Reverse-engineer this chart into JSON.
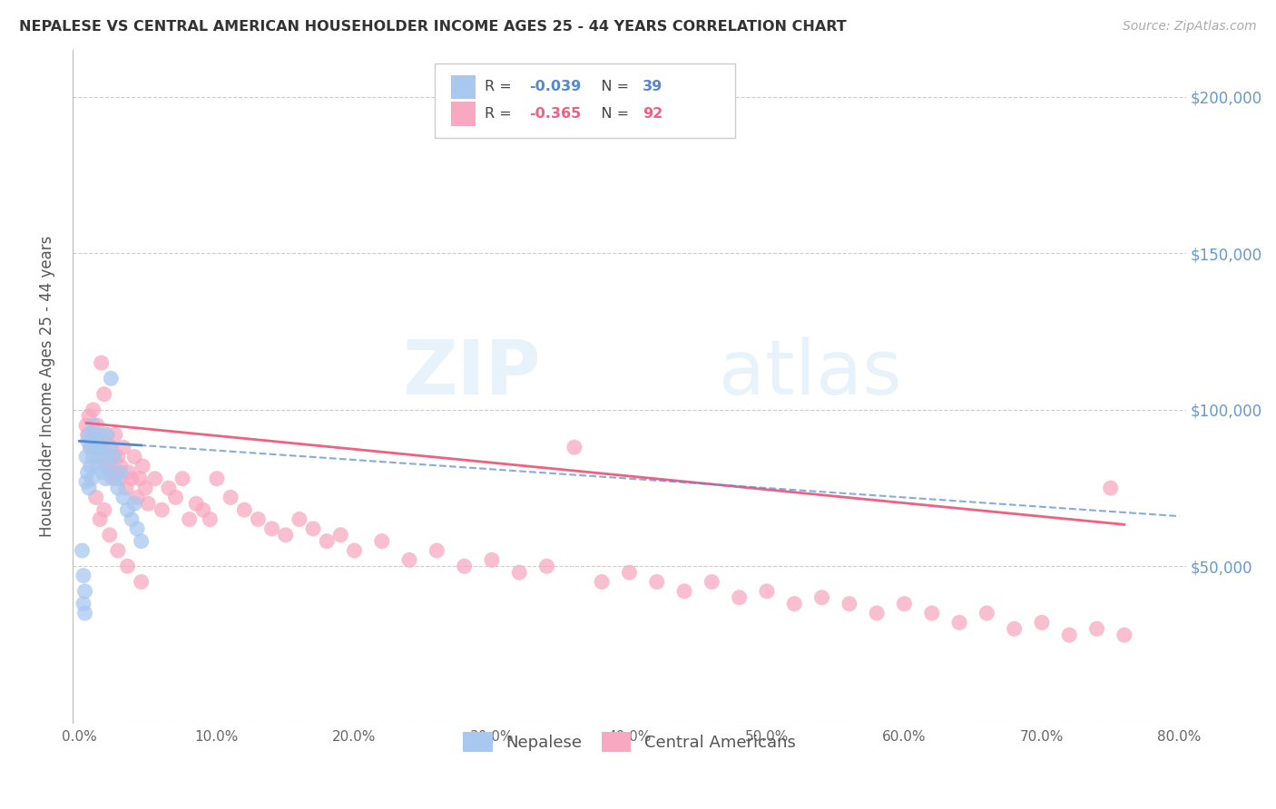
{
  "title": "NEPALESE VS CENTRAL AMERICAN HOUSEHOLDER INCOME AGES 25 - 44 YEARS CORRELATION CHART",
  "source": "Source: ZipAtlas.com",
  "ylabel": "Householder Income Ages 25 - 44 years",
  "xlabel_ticks": [
    "0.0%",
    "10.0%",
    "20.0%",
    "30.0%",
    "40.0%",
    "50.0%",
    "60.0%",
    "70.0%",
    "80.0%"
  ],
  "xlabel_vals": [
    0.0,
    0.1,
    0.2,
    0.3,
    0.4,
    0.5,
    0.6,
    0.7,
    0.8
  ],
  "ytick_vals": [
    0,
    50000,
    100000,
    150000,
    200000
  ],
  "right_ytick_labels": [
    "$50,000",
    "$100,000",
    "$150,000",
    "$200,000"
  ],
  "right_ytick_vals": [
    50000,
    100000,
    150000,
    200000
  ],
  "xlim": [
    -0.005,
    0.805
  ],
  "ylim": [
    0,
    215000
  ],
  "nepalese_R": -0.039,
  "nepalese_N": 39,
  "central_R": -0.365,
  "central_N": 92,
  "nepalese_color": "#a8c8f0",
  "central_color": "#f8a8c0",
  "nepalese_line_color": "#5588cc",
  "central_line_color": "#f06080",
  "background_color": "#ffffff",
  "nepalese_x": [
    0.002,
    0.003,
    0.003,
    0.004,
    0.004,
    0.005,
    0.005,
    0.006,
    0.006,
    0.007,
    0.007,
    0.008,
    0.008,
    0.009,
    0.01,
    0.01,
    0.011,
    0.012,
    0.013,
    0.014,
    0.015,
    0.016,
    0.017,
    0.018,
    0.019,
    0.02,
    0.021,
    0.022,
    0.023,
    0.025,
    0.026,
    0.028,
    0.03,
    0.032,
    0.035,
    0.038,
    0.04,
    0.042,
    0.045
  ],
  "nepalese_y": [
    55000,
    47000,
    38000,
    42000,
    35000,
    85000,
    77000,
    90000,
    80000,
    92000,
    75000,
    88000,
    82000,
    78000,
    95000,
    85000,
    90000,
    88000,
    82000,
    86000,
    92000,
    88000,
    80000,
    85000,
    78000,
    92000,
    82000,
    88000,
    110000,
    85000,
    78000,
    75000,
    80000,
    72000,
    68000,
    65000,
    70000,
    62000,
    58000
  ],
  "central_x": [
    0.005,
    0.006,
    0.007,
    0.008,
    0.009,
    0.01,
    0.011,
    0.012,
    0.013,
    0.014,
    0.015,
    0.016,
    0.017,
    0.018,
    0.019,
    0.02,
    0.021,
    0.022,
    0.023,
    0.024,
    0.025,
    0.026,
    0.027,
    0.028,
    0.029,
    0.03,
    0.032,
    0.034,
    0.036,
    0.038,
    0.04,
    0.042,
    0.044,
    0.046,
    0.048,
    0.05,
    0.055,
    0.06,
    0.065,
    0.07,
    0.075,
    0.08,
    0.085,
    0.09,
    0.095,
    0.1,
    0.11,
    0.12,
    0.13,
    0.14,
    0.15,
    0.16,
    0.17,
    0.18,
    0.19,
    0.2,
    0.22,
    0.24,
    0.26,
    0.28,
    0.3,
    0.32,
    0.34,
    0.36,
    0.38,
    0.4,
    0.42,
    0.44,
    0.46,
    0.48,
    0.5,
    0.52,
    0.54,
    0.56,
    0.58,
    0.6,
    0.62,
    0.64,
    0.66,
    0.68,
    0.7,
    0.72,
    0.74,
    0.76,
    0.012,
    0.015,
    0.018,
    0.022,
    0.028,
    0.035,
    0.045,
    0.75
  ],
  "central_y": [
    95000,
    92000,
    98000,
    88000,
    90000,
    100000,
    92000,
    88000,
    95000,
    85000,
    90000,
    115000,
    88000,
    105000,
    82000,
    92000,
    85000,
    80000,
    88000,
    78000,
    85000,
    92000,
    80000,
    85000,
    78000,
    82000,
    88000,
    75000,
    80000,
    78000,
    85000,
    72000,
    78000,
    82000,
    75000,
    70000,
    78000,
    68000,
    75000,
    72000,
    78000,
    65000,
    70000,
    68000,
    65000,
    78000,
    72000,
    68000,
    65000,
    62000,
    60000,
    65000,
    62000,
    58000,
    60000,
    55000,
    58000,
    52000,
    55000,
    50000,
    52000,
    48000,
    50000,
    88000,
    45000,
    48000,
    45000,
    42000,
    45000,
    40000,
    42000,
    38000,
    40000,
    38000,
    35000,
    38000,
    35000,
    32000,
    35000,
    30000,
    32000,
    28000,
    30000,
    28000,
    72000,
    65000,
    68000,
    60000,
    55000,
    50000,
    45000,
    75000
  ]
}
